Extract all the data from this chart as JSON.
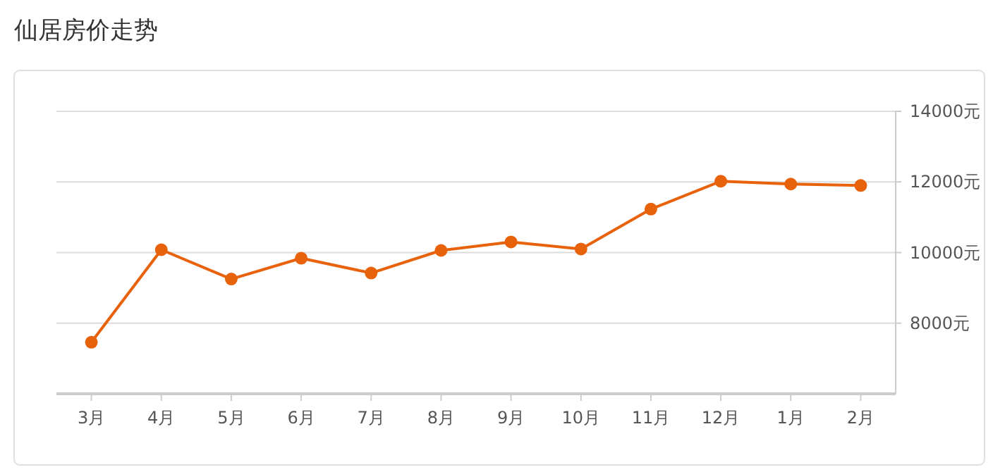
{
  "chart_data": {
    "type": "line",
    "title": "仙居房价走势",
    "categories": [
      "3月",
      "4月",
      "5月",
      "6月",
      "7月",
      "8月",
      "9月",
      "10月",
      "11月",
      "12月",
      "1月",
      "2月"
    ],
    "series": [
      {
        "color": "#e8620c",
        "values": [
          7460,
          10080,
          9250,
          9840,
          9420,
          10060,
          10300,
          10100,
          11230,
          12020,
          11940,
          11900
        ]
      }
    ],
    "ylim": [
      6000,
      14000
    ],
    "yticks": [
      {
        "value": 8000,
        "label": "8000元"
      },
      {
        "value": 10000,
        "label": "10000元"
      },
      {
        "value": 12000,
        "label": "12000元"
      },
      {
        "value": 14000,
        "label": "14000元"
      }
    ],
    "grid": "y",
    "marker": "circle",
    "line_style": "solid"
  }
}
